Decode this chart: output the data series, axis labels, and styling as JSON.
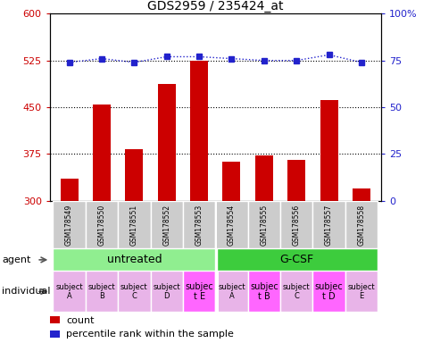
{
  "title": "GDS2959 / 235424_at",
  "samples": [
    "GSM178549",
    "GSM178550",
    "GSM178551",
    "GSM178552",
    "GSM178553",
    "GSM178554",
    "GSM178555",
    "GSM178556",
    "GSM178557",
    "GSM178558"
  ],
  "counts": [
    335,
    455,
    383,
    487,
    525,
    362,
    372,
    365,
    462,
    320
  ],
  "percentile_ranks": [
    74,
    76,
    74,
    77,
    77,
    76,
    75,
    75,
    78,
    74
  ],
  "ylim_left": [
    300,
    600
  ],
  "ylim_right": [
    0,
    100
  ],
  "yticks_left": [
    300,
    375,
    450,
    525,
    600
  ],
  "yticks_right": [
    0,
    25,
    50,
    75,
    100
  ],
  "ytick_right_labels": [
    "0",
    "25",
    "50",
    "75",
    "100%"
  ],
  "agent_colors": [
    "#90ee90",
    "#3dcc3d"
  ],
  "individual_labels": [
    "subject\nA",
    "subject\nB",
    "subject\nC",
    "subject\nD",
    "subjec\nt E",
    "subject\nA",
    "subjec\nt B",
    "subject\nC",
    "subjec\nt D",
    "subject\nE"
  ],
  "individual_colors": [
    "#e8b4e8",
    "#e8b4e8",
    "#e8b4e8",
    "#e8b4e8",
    "#ff66ff",
    "#e8b4e8",
    "#ff66ff",
    "#e8b4e8",
    "#ff66ff",
    "#e8b4e8"
  ],
  "individual_fontsizes": [
    6,
    6,
    6,
    6,
    7,
    6,
    7,
    6,
    7,
    6
  ],
  "bar_color": "#cc0000",
  "dot_color": "#2222cc",
  "grid_color": "#000000",
  "tick_color_left": "#cc0000",
  "tick_color_right": "#2222cc",
  "legend_count_color": "#cc0000",
  "legend_pct_color": "#2222cc",
  "sample_bg": "#cccccc"
}
